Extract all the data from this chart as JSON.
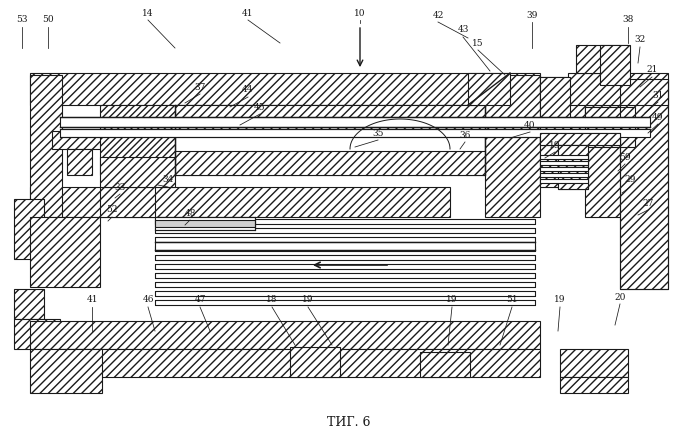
{
  "title": "ΤИГ. 6",
  "bg_color": "#ffffff",
  "line_color": "#1a1a1a",
  "figsize": [
    6.99,
    4.45
  ],
  "dpi": 100
}
